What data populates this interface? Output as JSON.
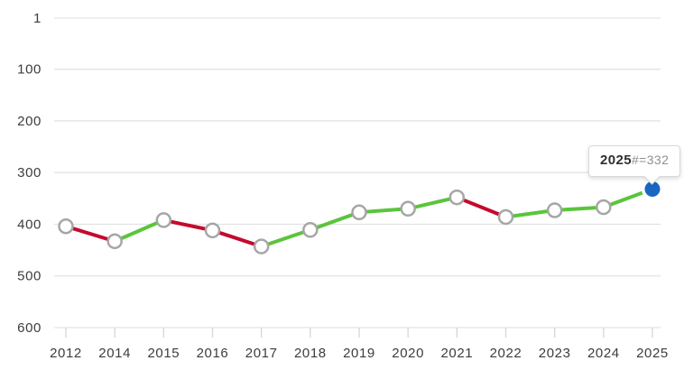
{
  "chart_data": {
    "type": "line",
    "title": "",
    "xlabel": "",
    "ylabel": "",
    "x": [
      "2012",
      "2014",
      "2015",
      "2016",
      "2017",
      "2018",
      "2019",
      "2020",
      "2021",
      "2022",
      "2023",
      "2024",
      "2025"
    ],
    "values": [
      404,
      433,
      392,
      412,
      443,
      411,
      377,
      370,
      348,
      386,
      373,
      367,
      332
    ],
    "y_axis": {
      "ticks": [
        1,
        100,
        200,
        300,
        400,
        500,
        600
      ],
      "inverted": true,
      "range": [
        1,
        600
      ]
    },
    "grid": "horizontal",
    "legend_position": "none",
    "highlight_index": 12,
    "colors": {
      "improve_segment": "#5bc43c",
      "decline_segment": "#c40a2d",
      "marker_fill": "#ffffff",
      "marker_stroke": "#a6a6a6",
      "highlight_fill": "#1a67c1",
      "highlight_halo": "#ffffff",
      "gridline": "#e3e3e3",
      "tick": "#d6d6d6",
      "label": "#3c3c3c"
    }
  },
  "tooltip": {
    "year": "2025",
    "detail": "#=332"
  }
}
